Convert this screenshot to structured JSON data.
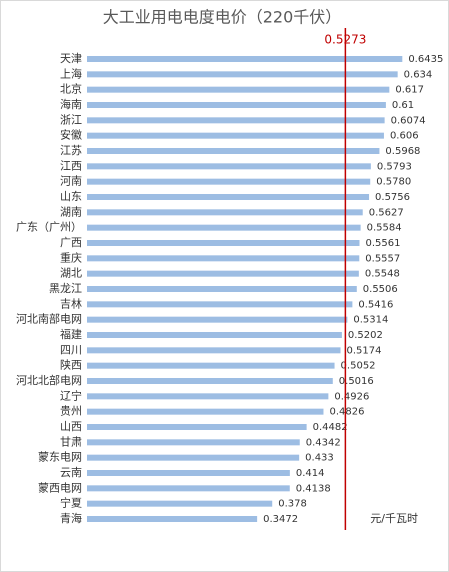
{
  "chart_data": {
    "type": "bar",
    "orientation": "horizontal",
    "title": "大工业用电电度电价（220千伏）",
    "categories": [
      "天津",
      "上海",
      "北京",
      "海南",
      "浙江",
      "安徽",
      "江苏",
      "江西",
      "河南",
      "山东",
      "湖南",
      "广东（广州）",
      "广西",
      "重庆",
      "湖北",
      "黑龙江",
      "吉林",
      "河北南部电网",
      "福建",
      "四川",
      "陕西",
      "河北北部电网",
      "辽宁",
      "贵州",
      "山西",
      "甘肃",
      "蒙东电网",
      "云南",
      "蒙西电网",
      "宁夏",
      "青海"
    ],
    "values": [
      0.6435,
      0.634,
      0.617,
      0.61,
      0.6074,
      0.606,
      0.5968,
      0.5793,
      0.578,
      0.5756,
      0.5627,
      0.5584,
      0.5561,
      0.5557,
      0.5548,
      0.5506,
      0.5416,
      0.5314,
      0.5202,
      0.5174,
      0.5052,
      0.5016,
      0.4926,
      0.4826,
      0.4482,
      0.4342,
      0.433,
      0.414,
      0.4138,
      0.378,
      0.3472
    ],
    "value_labels": [
      "0.6435",
      "0.634",
      "0.617",
      "0.61",
      "0.6074",
      "0.606",
      "0.5968",
      "0.5793",
      "0.5780",
      "0.5756",
      "0.5627",
      "0.5584",
      "0.5561",
      "0.5557",
      "0.5548",
      "0.5506",
      "0.5416",
      "0.5314",
      "0.5202",
      "0.5174",
      "0.5052",
      "0.5016",
      "0.4926",
      "0.4826",
      "0.4482",
      "0.4342",
      "0.433",
      "0.414",
      "0.4138",
      "0.378",
      "0.3472"
    ],
    "color": "#9dbde3",
    "reference_line": {
      "value": 0.5273,
      "label": "0.5273",
      "color": "#c00000"
    },
    "unit": "元/千瓦时"
  }
}
